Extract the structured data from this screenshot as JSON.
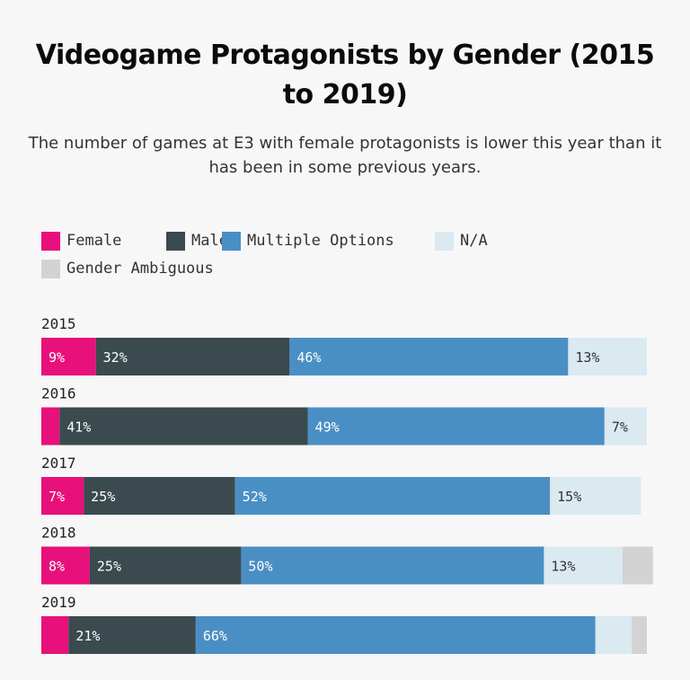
{
  "header": {
    "title": "Videogame Protagonists by Gender (2015 to 2019)",
    "subtitle": "The number of games at E3 with female protagonists is lower this year than it has been in some previous years."
  },
  "legend": [
    {
      "label": "Female",
      "color": "#e8107a"
    },
    {
      "label": "Male",
      "color": "#3a4a4e"
    },
    {
      "label": "Multiple Options",
      "color": "#4a8fc4"
    },
    {
      "label": "N/A",
      "color": "#dbe9f1"
    },
    {
      "label": "Gender Ambiguous",
      "color": "#d3d3d3"
    }
  ],
  "chart_data": {
    "type": "bar",
    "orientation": "horizontal-stacked-100",
    "title": "Videogame Protagonists by Gender (2015 to 2019)",
    "subtitle": "The number of games at E3 with female protagonists is lower this year than it has been in some previous years.",
    "categories": [
      "2015",
      "2016",
      "2017",
      "2018",
      "2019"
    ],
    "series": [
      {
        "name": "Female",
        "color": "#e8107a",
        "values": [
          9,
          3,
          7,
          8,
          4.5
        ],
        "labels": [
          "9%",
          "",
          "7%",
          "8%",
          ""
        ]
      },
      {
        "name": "Male",
        "color": "#3a4a4e",
        "values": [
          32,
          41,
          25,
          25,
          21
        ],
        "labels": [
          "32%",
          "41%",
          "25%",
          "25%",
          "21%"
        ]
      },
      {
        "name": "Multiple Options",
        "color": "#4a8fc4",
        "values": [
          46,
          49,
          52,
          50,
          66
        ],
        "labels": [
          "46%",
          "49%",
          "52%",
          "50%",
          "66%"
        ]
      },
      {
        "name": "N/A",
        "color": "#dbe9f1",
        "values": [
          13,
          7,
          15,
          13,
          6
        ],
        "labels": [
          "13%",
          "7%",
          "15%",
          "13%",
          ""
        ]
      },
      {
        "name": "Gender Ambiguous",
        "color": "#d3d3d3",
        "values": [
          0,
          0,
          0,
          5,
          2.5
        ],
        "labels": [
          "",
          "",
          "",
          "",
          ""
        ]
      }
    ],
    "xlim": [
      0,
      100
    ],
    "legend_position": "top-left"
  }
}
